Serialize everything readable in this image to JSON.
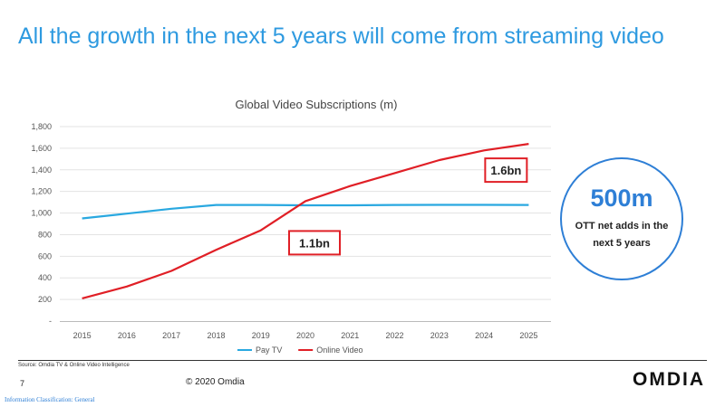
{
  "slide": {
    "title": "All the growth in the next 5 years will come from streaming video"
  },
  "chart_data": {
    "type": "line",
    "title": "Global Video Subscriptions (m)",
    "categories": [
      "2015",
      "2016",
      "2017",
      "2018",
      "2019",
      "2020",
      "2021",
      "2022",
      "2023",
      "2024",
      "2025"
    ],
    "ylim": [
      0,
      1800
    ],
    "yticks": [
      0,
      200,
      400,
      600,
      800,
      1000,
      1200,
      1400,
      1600,
      1800
    ],
    "ytick_labels": [
      "-",
      "200",
      "400",
      "600",
      "800",
      "1,000",
      "1,200",
      "1,400",
      "1,600",
      "1,800"
    ],
    "grid": true,
    "legend_position": "bottom",
    "series": [
      {
        "name": "Pay TV",
        "color": "#29a8e0",
        "values": [
          950,
          995,
          1040,
          1075,
          1075,
          1072,
          1072,
          1075,
          1076,
          1076,
          1075
        ]
      },
      {
        "name": "Online Video",
        "color": "#e01f26",
        "values": [
          210,
          320,
          465,
          660,
          840,
          1110,
          1250,
          1370,
          1490,
          1580,
          1640
        ]
      }
    ],
    "annotations": [
      {
        "text": "1.1bn",
        "category": "2020",
        "value": 1110
      },
      {
        "text": "1.6bn",
        "category": "2025",
        "value": 1640
      }
    ]
  },
  "kpi": {
    "value": "500m",
    "caption": "OTT net adds in the next 5 years"
  },
  "footer": {
    "source": "Source: Omdia TV & Online Video Intelligence",
    "page_number": "7",
    "copyright": "© 2020 Omdia",
    "brand": "OMDIA",
    "classification": "Information Classification: General"
  },
  "colors": {
    "title_blue": "#2e9ae0",
    "accent_blue": "#2e7fd6",
    "callout_red": "#e01f26"
  }
}
